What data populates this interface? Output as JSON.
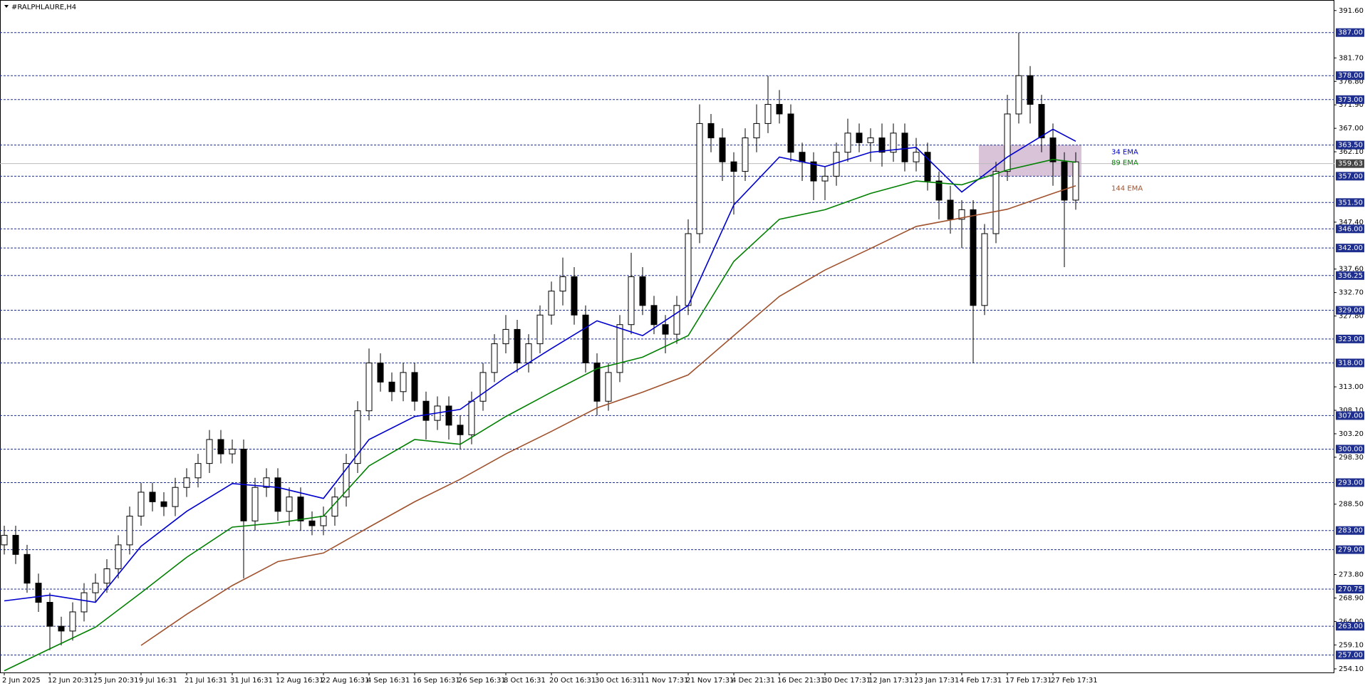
{
  "chart_data": {
    "type": "candlestick",
    "title": "#RALPHLAURE,H4",
    "categories": [
      "2 Jun 2025",
      null,
      null,
      null,
      "12 Jun 20:31",
      null,
      null,
      null,
      "25 Jun 20:31",
      null,
      null,
      null,
      "9 Jul 16:31",
      null,
      null,
      null,
      "21 Jul 16:31",
      null,
      null,
      null,
      "31 Jul 16:31",
      null,
      null,
      null,
      "12 Aug 16:31",
      null,
      null,
      null,
      "22 Aug 16:31",
      null,
      null,
      null,
      "4 Sep 16:31",
      null,
      null,
      null,
      "16 Sep 16:31",
      null,
      null,
      null,
      "26 Sep 16:31",
      null,
      null,
      null,
      "8 Oct 16:31",
      null,
      null,
      null,
      "20 Oct 16:31",
      null,
      null,
      null,
      "30 Oct 16:31",
      null,
      null,
      null,
      "11 Nov 17:31",
      null,
      null,
      null,
      "21 Nov 17:31",
      null,
      null,
      null,
      "4 Dec 21:31",
      null,
      null,
      null,
      "16 Dec 21:31",
      null,
      null,
      null,
      "30 Dec 17:31",
      null,
      null,
      null,
      "12 Jan 17:31",
      null,
      null,
      null,
      "23 Jan 17:31",
      null,
      null,
      null,
      "4 Feb 17:31",
      null,
      null,
      null,
      "17 Feb 17:31",
      null,
      null,
      null,
      "27 Feb 17:31",
      null,
      null
    ],
    "open": [
      280,
      282,
      278,
      272,
      268,
      263,
      262,
      266,
      270,
      272,
      275,
      280,
      286,
      291,
      289,
      288,
      292,
      294,
      297,
      302,
      299,
      300,
      285,
      292,
      294,
      287,
      290,
      285,
      284,
      286,
      290,
      297,
      308,
      318,
      314,
      312,
      316,
      310,
      306,
      309,
      305,
      303,
      310,
      316,
      322,
      325,
      318,
      322,
      328,
      333,
      336,
      328,
      318,
      310,
      316,
      326,
      336,
      330,
      326,
      324,
      330,
      345,
      368,
      365,
      360,
      358,
      365,
      368,
      372,
      370,
      362,
      360,
      356,
      357,
      362,
      366,
      364,
      365,
      362,
      366,
      360,
      362,
      356,
      352,
      348,
      350,
      330,
      345,
      358,
      370,
      378,
      372,
      365,
      360,
      352
    ],
    "high": [
      284,
      284,
      280,
      274,
      270,
      265,
      268,
      272,
      274,
      277,
      282,
      288,
      293,
      293,
      291,
      294,
      296,
      299,
      304,
      304,
      302,
      302,
      294,
      296,
      296,
      292,
      292,
      287,
      288,
      292,
      299,
      310,
      321,
      320,
      316,
      318,
      318,
      312,
      311,
      311,
      307,
      312,
      318,
      324,
      328,
      327,
      324,
      330,
      335,
      340,
      338,
      330,
      320,
      318,
      328,
      341,
      338,
      332,
      328,
      332,
      348,
      372,
      370,
      367,
      362,
      367,
      372,
      378,
      375,
      372,
      364,
      362,
      359,
      364,
      369,
      368,
      367,
      368,
      368,
      368,
      365,
      364,
      358,
      355,
      352,
      352,
      347,
      360,
      374,
      387,
      380,
      374,
      368,
      362,
      362
    ],
    "low": [
      278,
      276,
      270,
      266,
      258,
      259,
      260,
      264,
      268,
      270,
      273,
      278,
      284,
      287,
      286,
      286,
      290,
      292,
      295,
      297,
      297,
      273,
      283,
      290,
      285,
      284,
      283,
      282,
      282,
      284,
      288,
      295,
      306,
      312,
      310,
      310,
      308,
      302,
      304,
      302,
      300,
      301,
      308,
      314,
      320,
      316,
      316,
      320,
      326,
      330,
      326,
      316,
      307,
      308,
      314,
      324,
      328,
      324,
      320,
      322,
      328,
      343,
      362,
      356,
      349,
      356,
      362,
      366,
      368,
      360,
      356,
      352,
      352,
      355,
      360,
      362,
      360,
      359,
      360,
      358,
      358,
      354,
      348,
      345,
      342,
      318,
      328,
      343,
      356,
      368,
      368,
      362,
      355,
      338,
      350
    ],
    "close": [
      282,
      278,
      272,
      268,
      263,
      262,
      266,
      270,
      272,
      275,
      280,
      286,
      291,
      289,
      288,
      292,
      294,
      297,
      302,
      299,
      300,
      285,
      292,
      294,
      287,
      290,
      285,
      284,
      286,
      290,
      297,
      308,
      318,
      314,
      312,
      316,
      310,
      306,
      309,
      305,
      303,
      310,
      316,
      322,
      325,
      318,
      322,
      328,
      333,
      336,
      328,
      318,
      310,
      316,
      326,
      336,
      330,
      326,
      324,
      330,
      345,
      368,
      365,
      360,
      358,
      365,
      368,
      372,
      370,
      362,
      360,
      356,
      357,
      362,
      366,
      364,
      365,
      362,
      366,
      360,
      362,
      356,
      352,
      348,
      350,
      330,
      345,
      358,
      370,
      378,
      372,
      365,
      360,
      352,
      360
    ],
    "lines": [
      {
        "name": "34 EMA",
        "color": "#0000cd",
        "x": [
          0,
          4,
          8,
          12,
          16,
          20,
          24,
          28,
          32,
          36,
          40,
          44,
          48,
          52,
          56,
          60,
          64,
          68,
          72,
          76,
          80,
          84,
          88,
          92,
          94
        ],
        "values": [
          268.3,
          269.5,
          268,
          279.7,
          287,
          292.8,
          292,
          289.7,
          302,
          306.8,
          308.3,
          315,
          321,
          326.8,
          323.7,
          330,
          351,
          361,
          359,
          362,
          363,
          353.7,
          361,
          366.8,
          364.3
        ]
      },
      {
        "name": "89 EMA",
        "color": "#008000",
        "x": [
          0,
          4,
          8,
          12,
          16,
          20,
          24,
          28,
          32,
          36,
          40,
          44,
          48,
          52,
          56,
          60,
          64,
          68,
          72,
          76,
          80,
          84,
          88,
          92,
          94
        ],
        "values": [
          253.7,
          258.3,
          262.8,
          270,
          277.4,
          283.7,
          284.6,
          286,
          296.5,
          302,
          301,
          306.8,
          311.9,
          316.8,
          319.2,
          323.7,
          339.2,
          348,
          350,
          353.4,
          356,
          355.2,
          358.3,
          360.5,
          359.9
        ]
      },
      {
        "name": "144 EMA",
        "color": "#a0522d",
        "x": [
          0,
          4,
          8,
          12,
          16,
          20,
          24,
          28,
          32,
          36,
          40,
          44,
          48,
          52,
          56,
          60,
          64,
          68,
          72,
          76,
          80,
          84,
          88,
          92,
          94
        ],
        "values": [
          null,
          null,
          null,
          259,
          265.5,
          271.5,
          276.5,
          278.3,
          283.7,
          289,
          293.7,
          299,
          303.7,
          308.6,
          311.9,
          315.5,
          323.7,
          331.9,
          337.4,
          341.9,
          346.5,
          348.3,
          350.1,
          353.4,
          355
        ]
      }
    ],
    "zone": {
      "x": [
        85.5,
        94.5
      ],
      "y": [
        357,
        363.5
      ]
    },
    "ylim": [
      253.2,
      393.8
    ],
    "yticks": [
      {
        "value": 391.6,
        "label": "391.60"
      },
      {
        "value": 381.7,
        "label": "381.70"
      },
      {
        "value": 376.8,
        "label": "376.80"
      },
      {
        "value": 371.9,
        "label": "371.90"
      },
      {
        "value": 367,
        "label": "367.00"
      },
      {
        "value": 362.1,
        "label": "362.10"
      },
      {
        "value": 347.4,
        "label": "347.40"
      },
      {
        "value": 337.6,
        "label": "337.60"
      },
      {
        "value": 332.7,
        "label": "332.70"
      },
      {
        "value": 327.8,
        "label": "327.80"
      },
      {
        "value": 313,
        "label": "313.00"
      },
      {
        "value": 308.1,
        "label": "308.10"
      },
      {
        "value": 303.2,
        "label": "303.20"
      },
      {
        "value": 298.3,
        "label": "298.30"
      },
      {
        "value": 288.5,
        "label": "288.50"
      },
      {
        "value": 273.8,
        "label": "273.80"
      },
      {
        "value": 268.9,
        "label": "268.90"
      },
      {
        "value": 264,
        "label": "264.00"
      },
      {
        "value": 259.1,
        "label": "259.10"
      },
      {
        "value": 254.1,
        "label": "254.10"
      }
    ],
    "levels": [
      {
        "value": 387,
        "label": "387.00"
      },
      {
        "value": 378,
        "label": "378.00"
      },
      {
        "value": 373,
        "label": "373.00"
      },
      {
        "value": 363.5,
        "label": "363.50"
      },
      {
        "value": 357,
        "label": "357.00"
      },
      {
        "value": 351.5,
        "label": "351.50"
      },
      {
        "value": 346,
        "label": "346.00"
      },
      {
        "value": 342,
        "label": "342.00"
      },
      {
        "value": 336.25,
        "label": "336.25"
      },
      {
        "value": 329,
        "label": "329.00"
      },
      {
        "value": 323,
        "label": "323.00"
      },
      {
        "value": 318,
        "label": "318.00"
      },
      {
        "value": 307,
        "label": "307.00"
      },
      {
        "value": 300,
        "label": "300.00"
      },
      {
        "value": 293,
        "label": "293.00"
      },
      {
        "value": 283,
        "label": "283.00"
      },
      {
        "value": 279,
        "label": "279.00"
      },
      {
        "value": 270.75,
        "label": "270.75"
      },
      {
        "value": 263,
        "label": "263.00"
      },
      {
        "value": 257,
        "label": "257.00"
      }
    ],
    "current_price": {
      "value": 359.63,
      "label": "359.63"
    },
    "bull_color": "#ffffff",
    "bear_color": "#000000",
    "level_color": "#1f2f8f"
  }
}
